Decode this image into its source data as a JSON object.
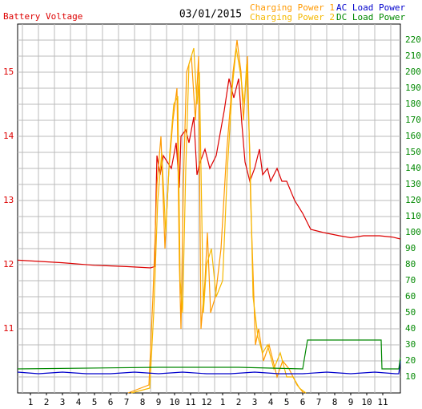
{
  "chart_data": {
    "type": "line",
    "title": "03/01/2015",
    "ylabel": "Battery Voltage",
    "xlim": [
      0.2,
      24.1
    ],
    "xticks": [
      {
        "value": 1,
        "label": "1"
      },
      {
        "value": 2,
        "label": "2"
      },
      {
        "value": 3,
        "label": "3"
      },
      {
        "value": 4,
        "label": "4"
      },
      {
        "value": 5,
        "label": "5"
      },
      {
        "value": 6,
        "label": "6"
      },
      {
        "value": 7,
        "label": "7"
      },
      {
        "value": 8,
        "label": "8"
      },
      {
        "value": 9,
        "label": "9"
      },
      {
        "value": 10,
        "label": "10"
      },
      {
        "value": 11,
        "label": "11"
      },
      {
        "value": 12,
        "label": "12"
      },
      {
        "value": 13,
        "label": "1"
      },
      {
        "value": 14,
        "label": "2"
      },
      {
        "value": 15,
        "label": "3"
      },
      {
        "value": 16,
        "label": "4"
      },
      {
        "value": 17,
        "label": "5"
      },
      {
        "value": 18,
        "label": "6"
      },
      {
        "value": 19,
        "label": "7"
      },
      {
        "value": 20,
        "label": "8"
      },
      {
        "value": 21,
        "label": "9"
      },
      {
        "value": 22,
        "label": "10"
      },
      {
        "value": 23,
        "label": "11"
      }
    ],
    "ylim": [
      10,
      15.75
    ],
    "yticks": [
      11,
      12,
      13,
      14,
      15
    ],
    "y2lim": [
      0,
      230
    ],
    "y2ticks": [
      10,
      20,
      30,
      40,
      50,
      60,
      70,
      80,
      90,
      100,
      110,
      120,
      130,
      140,
      150,
      160,
      170,
      180,
      190,
      200,
      210,
      220
    ],
    "grid": true,
    "series": [
      {
        "name": "Battery Voltage",
        "color": "#dd0000",
        "axis": "y",
        "x": [
          0.2,
          3,
          5,
          7,
          8.5,
          8.75,
          8.9,
          9.1,
          9.3,
          9.8,
          10.1,
          10.3,
          10.4,
          10.7,
          10.9,
          11.2,
          11.4,
          11.6,
          11.9,
          12.2,
          12.6,
          13.1,
          13.4,
          13.7,
          14.0,
          14.2,
          14.4,
          14.7,
          15.0,
          15.3,
          15.5,
          15.8,
          16.0,
          16.4,
          16.7,
          17.0,
          17.5,
          18.0,
          18.5,
          19.3,
          20.3,
          21.0,
          21.8,
          22.8,
          23.6,
          24.1
        ],
        "values": [
          12.07,
          12.03,
          11.99,
          11.97,
          11.95,
          11.97,
          13.7,
          13.4,
          13.7,
          13.5,
          13.9,
          13.2,
          14.0,
          14.1,
          13.9,
          14.3,
          13.4,
          13.6,
          13.8,
          13.5,
          13.7,
          14.4,
          14.9,
          14.6,
          14.9,
          14.2,
          13.6,
          13.3,
          13.5,
          13.8,
          13.4,
          13.5,
          13.3,
          13.5,
          13.3,
          13.3,
          13.0,
          12.8,
          12.55,
          12.5,
          12.45,
          12.42,
          12.45,
          12.45,
          12.43,
          12.4
        ]
      },
      {
        "name": "Charging Power 1",
        "color": "#ff9900",
        "axis": "y2",
        "x": [
          7.1,
          8.4,
          8.65,
          8.9,
          9.15,
          9.4,
          9.65,
          9.9,
          10.15,
          10.3,
          10.4,
          10.55,
          10.75,
          11.05,
          11.3,
          11.5,
          11.65,
          11.9,
          12.05,
          12.25,
          12.55,
          12.9,
          13.25,
          13.65,
          13.9,
          14.15,
          14.3,
          14.55,
          14.75,
          15.05,
          15.25,
          15.55,
          15.9,
          16.4,
          16.75,
          17.15,
          17.65,
          18.05
        ],
        "values": [
          0,
          5,
          60,
          130,
          160,
          90,
          140,
          170,
          190,
          80,
          40,
          130,
          200,
          210,
          170,
          210,
          40,
          70,
          100,
          50,
          60,
          90,
          150,
          200,
          220,
          200,
          170,
          210,
          120,
          30,
          40,
          20,
          30,
          10,
          20,
          15,
          5,
          0
        ]
      },
      {
        "name": "Charging Power 2",
        "color": "#f5b800",
        "axis": "y2",
        "x": [
          7.3,
          8.45,
          8.7,
          8.95,
          9.2,
          9.45,
          9.7,
          9.95,
          10.2,
          10.35,
          10.5,
          10.7,
          10.9,
          11.2,
          11.4,
          11.55,
          11.8,
          12.0,
          12.3,
          12.6,
          13.0,
          13.3,
          13.6,
          13.85,
          14.1,
          14.35,
          14.5,
          14.7,
          14.9,
          15.2,
          15.5,
          15.8,
          16.2,
          16.6,
          17.0,
          17.4,
          17.8,
          18.2
        ],
        "values": [
          0,
          3,
          50,
          120,
          150,
          100,
          150,
          180,
          185,
          70,
          50,
          140,
          205,
          215,
          180,
          200,
          50,
          80,
          90,
          60,
          70,
          140,
          190,
          215,
          200,
          180,
          205,
          150,
          60,
          35,
          25,
          30,
          15,
          25,
          10,
          10,
          3,
          0
        ]
      },
      {
        "name": "AC Load Power",
        "color": "#0000cc",
        "axis": "y2",
        "x": [
          0.2,
          1.5,
          3,
          4.5,
          6,
          7.5,
          9,
          10.5,
          12,
          13.5,
          15,
          16.5,
          18,
          19.5,
          21,
          22.5,
          23.8,
          24.0,
          24.1
        ],
        "values": [
          13,
          12,
          13,
          12,
          12,
          13,
          12,
          13,
          12,
          12,
          13,
          12,
          12,
          13,
          12,
          13,
          12,
          12,
          20
        ]
      },
      {
        "name": "DC Load Power",
        "color": "#008800",
        "axis": "y2",
        "x": [
          0.2,
          9,
          14,
          18,
          18.3,
          22.9,
          22.95,
          24.0,
          24.1
        ],
        "values": [
          15,
          16,
          16,
          15,
          33,
          33,
          15,
          15,
          22
        ]
      }
    ]
  }
}
